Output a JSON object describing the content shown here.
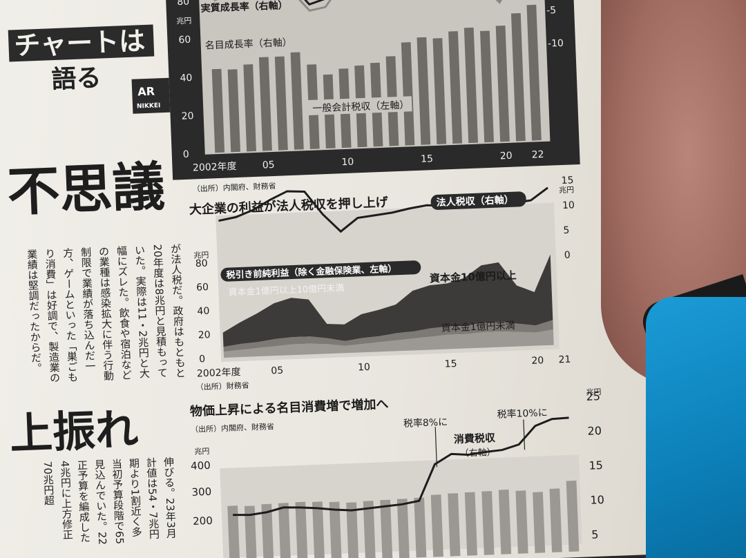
{
  "header": {
    "series_title": "チャートは",
    "series_subtitle": "語る",
    "ar_badge": "AR",
    "ar_badge_sub": "NIKKEI"
  },
  "headlines": {
    "main": "不思議",
    "second": "上振れ"
  },
  "body_columns": [
    "が法人税だ。政府はもともと",
    "20年度は8兆円と見積もって",
    "いた。実際は11・2兆円と大",
    "幅にズレた。飲食や宿泊など",
    "の業種は感染拡大に伴う行動",
    "制限で業績が落ち込んだ一",
    "方、ゲームといった「巣ごも",
    "り消費」は好調で、製造業の",
    "業績は堅調だったからだ。"
  ],
  "body_columns_lower": [
    "伸びる。23年3月",
    "計値は54・7兆円",
    "期より1割近く多",
    "当初予算段階で65",
    "見込んでいた。22",
    "正予算を編成した",
    "4兆円に上方修正",
    "70兆円超"
  ],
  "chart1": {
    "legend_real": "実質成長率（右軸）",
    "legend_nominal": "名目成長率（右軸）",
    "bar_label": "一般会計税収（左軸）",
    "left_unit": "兆円",
    "left_ticks": [
      "80",
      "60",
      "40",
      "20",
      "0"
    ],
    "right_ticks": [
      "-5",
      "-10"
    ],
    "x_ticks": [
      "2002年度",
      "05",
      "10",
      "15",
      "20",
      "22"
    ],
    "source": "（出所）内閣府、財務省"
  },
  "chart2": {
    "title": "大企業の利益が法人税収を押し上げ",
    "line_label": "法人税収（右軸）",
    "area_label": "税引き前純利益（除く金融保険業、左軸）",
    "series_mid": "資本金1億円以上10億円未満",
    "series_top": "資本金10億円以上",
    "series_bottom": "資本金1億円未満",
    "left_unit": "兆円",
    "right_unit": "兆円",
    "left_ticks": [
      "80",
      "60",
      "40",
      "20",
      "0"
    ],
    "right_ticks": [
      "15",
      "10",
      "5",
      "0"
    ],
    "x_ticks": [
      "2002年度",
      "05",
      "10",
      "15",
      "20",
      "21"
    ],
    "source": "（出所）財務省"
  },
  "chart3": {
    "title": "物価上昇による名目消費増で増加へ",
    "source": "（出所）内閣府、財務省",
    "note_8": "税率8%に",
    "note_10": "税率10%に",
    "line_label": "消費税収",
    "line_label_axis": "（右軸）",
    "left_unit": "兆円",
    "right_unit": "兆円",
    "left_ticks": [
      "400",
      "300",
      "200"
    ],
    "right_ticks": [
      "25",
      "20",
      "15",
      "10",
      "5"
    ]
  },
  "chart_data": [
    {
      "type": "bar",
      "title": "",
      "x": [
        2002,
        2003,
        2004,
        2005,
        2006,
        2007,
        2008,
        2009,
        2010,
        2011,
        2012,
        2013,
        2014,
        2015,
        2016,
        2017,
        2018,
        2019,
        2020,
        2021,
        2022
      ],
      "series": [
        {
          "name": "一般会計税収（左軸）",
          "values": [
            43.8,
            43.3,
            45.6,
            49.1,
            49.1,
            51.0,
            44.3,
            38.7,
            41.5,
            42.8,
            43.9,
            47.0,
            54.0,
            56.3,
            55.5,
            58.8,
            60.4,
            58.4,
            60.8,
            67.0,
            71.1
          ]
        },
        {
          "name": "実質成長率（右軸）",
          "values": [
            0.1,
            2.0,
            1.7,
            1.8,
            1.4,
            1.1,
            -3.6,
            -2.4,
            3.2,
            0.5,
            0.6,
            2.7,
            -0.4,
            1.7,
            0.8,
            1.8,
            0.2,
            -0.8,
            -4.1,
            2.5,
            1.4
          ]
        },
        {
          "name": "名目成長率（右軸）",
          "values": [
            -0.8,
            0.6,
            0.8,
            0.4,
            0.6,
            0.4,
            -4.1,
            -3.4,
            1.5,
            -1.0,
            0.1,
            2.7,
            2.1,
            3.3,
            0.8,
            2.0,
            0.2,
            0.0,
            -3.9,
            2.4,
            2.0
          ]
        }
      ],
      "ylim": [
        0,
        80
      ],
      "y2lim": [
        -10,
        5
      ]
    },
    {
      "type": "area",
      "title": "大企業の利益が法人税収を押し上げ",
      "x": [
        2002,
        2003,
        2004,
        2005,
        2006,
        2007,
        2008,
        2009,
        2010,
        2011,
        2012,
        2013,
        2014,
        2015,
        2016,
        2017,
        2018,
        2019,
        2020,
        2021
      ],
      "series": [
        {
          "name": "資本金1億円未満",
          "values": [
            5,
            6,
            7,
            8,
            9,
            9,
            8,
            6,
            7,
            8,
            9,
            10,
            11,
            12,
            12,
            13,
            13,
            12,
            11,
            13
          ]
        },
        {
          "name": "資本金1億円以上10億円未満",
          "values": [
            4,
            5,
            5,
            6,
            6,
            6,
            5,
            4,
            5,
            5,
            6,
            6,
            7,
            7,
            7,
            8,
            8,
            7,
            6,
            8
          ]
        },
        {
          "name": "資本金10億円以上",
          "values": [
            12,
            18,
            24,
            30,
            33,
            31,
            12,
            14,
            20,
            22,
            24,
            34,
            36,
            36,
            40,
            48,
            50,
            32,
            28,
            55
          ]
        },
        {
          "name": "法人税収（右軸）",
          "values": [
            9.5,
            10.1,
            11.4,
            13.3,
            14.9,
            14.7,
            10.0,
            6.4,
            9.0,
            9.4,
            9.8,
            10.5,
            11.0,
            10.8,
            10.3,
            12.0,
            12.3,
            10.8,
            11.2,
            13.6
          ]
        }
      ],
      "ylim": [
        0,
        80
      ],
      "y2lim": [
        0,
        15
      ]
    },
    {
      "type": "bar",
      "title": "物価上昇による名目消費増で増加へ",
      "x": [
        2002,
        2003,
        2004,
        2005,
        2006,
        2007,
        2008,
        2009,
        2010,
        2011,
        2012,
        2013,
        2014,
        2015,
        2016,
        2017,
        2018,
        2019,
        2020,
        2021,
        2022
      ],
      "series": [
        {
          "name": "消費税収",
          "values": [
            9.8,
            9.7,
            10.0,
            10.6,
            10.5,
            10.3,
            10.0,
            9.8,
            10.0,
            10.2,
            10.4,
            10.8,
            16.0,
            17.4,
            17.2,
            17.5,
            17.7,
            18.4,
            21.0,
            21.9,
            22.0
          ]
        }
      ],
      "ylim": [
        150,
        420
      ],
      "y2lim": [
        5,
        25
      ]
    }
  ]
}
